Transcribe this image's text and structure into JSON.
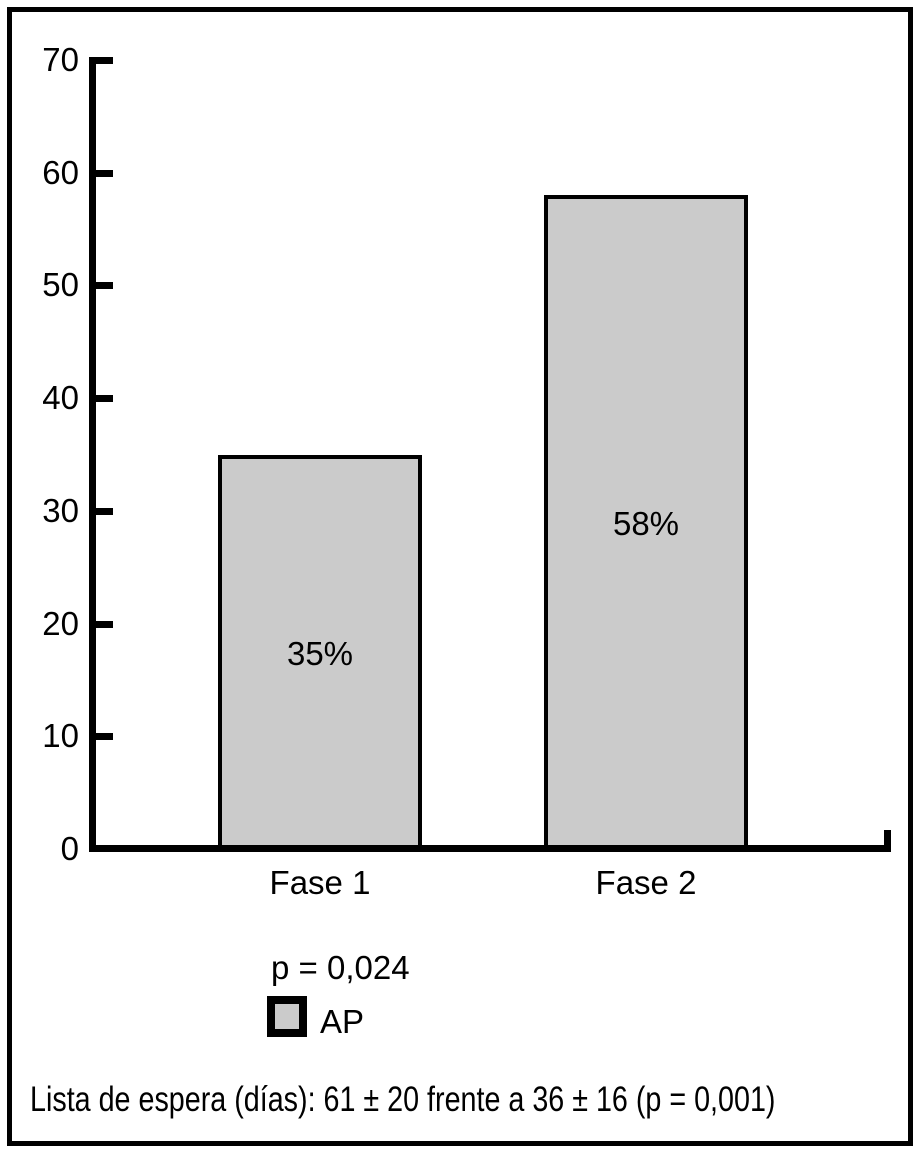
{
  "chart_data": {
    "type": "bar",
    "categories": [
      "Fase 1",
      "Fase 2"
    ],
    "values": [
      35,
      58
    ],
    "bar_labels": [
      "35%",
      "58%"
    ],
    "title": "",
    "xlabel": "",
    "ylabel": "",
    "ylim": [
      0,
      70
    ],
    "yticks": [
      0,
      10,
      20,
      30,
      40,
      50,
      60,
      70
    ],
    "grid": false,
    "bar_color": "#cbcbcb",
    "bar_border_color": "#000000",
    "axis_color": "#000000",
    "legend": {
      "position": "below-chart",
      "p_value_label": "p = 0,024",
      "series_label": "AP",
      "swatch_color": "#cbcbcb"
    },
    "footnote": "Lista de espera (días): 61 ± 20 frente a 36 ± 16 (p = 0,001)"
  }
}
